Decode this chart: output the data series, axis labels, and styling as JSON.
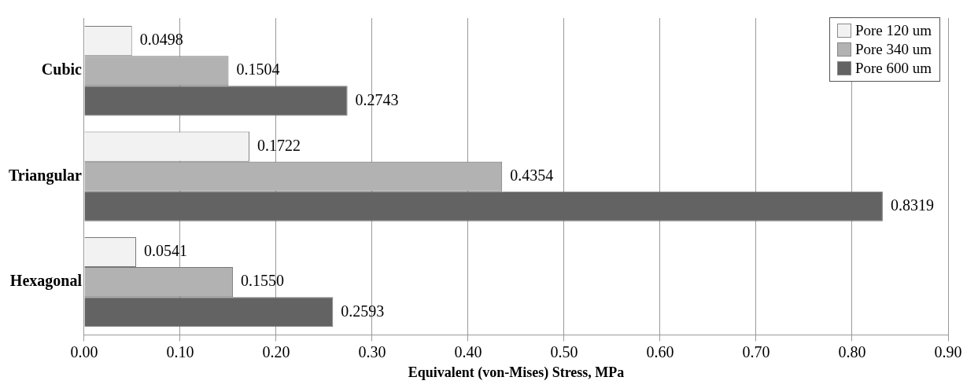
{
  "chart_data": {
    "type": "bar",
    "orientation": "horizontal",
    "xlabel": "Equivalent (von-Mises) Stress, MPa",
    "categories": [
      "Cubic",
      "Triangular",
      "Hexagonal"
    ],
    "series": [
      {
        "name": "Pore 120 um",
        "color": "#f2f2f2",
        "values": [
          0.0498,
          0.1722,
          0.0541
        ],
        "value_labels": [
          "0.0498",
          "0.1722",
          "0.0541"
        ]
      },
      {
        "name": "Pore 340 um",
        "color": "#b2b2b2",
        "values": [
          0.1504,
          0.4354,
          0.155
        ],
        "value_labels": [
          "0.1504",
          "0.4354",
          "0.1550"
        ]
      },
      {
        "name": "Pore 600 um",
        "color": "#636363",
        "values": [
          0.2743,
          0.8319,
          0.2593
        ],
        "value_labels": [
          "0.2743",
          "0.8319",
          "0.2593"
        ]
      }
    ],
    "xlim": [
      0,
      0.9
    ],
    "xticks": [
      {
        "value": 0,
        "label": "0.00"
      },
      {
        "value": 0.1,
        "label": "0.10"
      },
      {
        "value": 0.2,
        "label": "0.20"
      },
      {
        "value": 0.3,
        "label": "0.30"
      },
      {
        "value": 0.4,
        "label": "0.40"
      },
      {
        "value": 0.5,
        "label": "0.50"
      },
      {
        "value": 0.6,
        "label": "0.60"
      },
      {
        "value": 0.7,
        "label": "0.70"
      },
      {
        "value": 0.8,
        "label": "0.80"
      },
      {
        "value": 0.9,
        "label": "0.90"
      }
    ],
    "grid": "x",
    "legend": "top right"
  }
}
